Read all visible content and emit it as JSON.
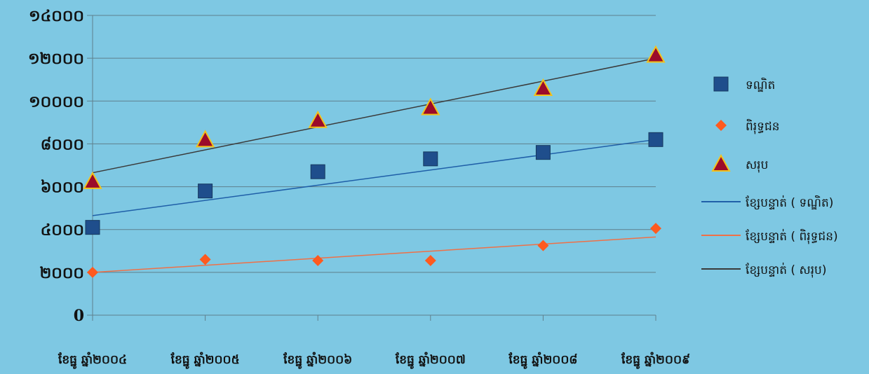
{
  "chart_data": {
    "type": "scatter",
    "title": "",
    "xlabel": "",
    "ylabel": "",
    "categories": [
      "ខែធ្នូ ឆ្នាំ២០០៤",
      "ខែធ្នូ ឆ្នាំ២០០៥",
      "ខែធ្នូ ឆ្នាំ២០០៦",
      "ខែធ្នូ ឆ្នាំ២០០៧",
      "ខែធ្នូ ឆ្នាំ២០០៨",
      "ខែធ្នូ ឆ្នាំ២០០៩"
    ],
    "ylim": [
      0,
      14000
    ],
    "yticks": [
      0,
      2000,
      4000,
      6000,
      8000,
      10000,
      12000,
      14000
    ],
    "ytick_labels": [
      "0",
      "២០០០",
      "៤០០០",
      "៦០០០",
      "៨០០០",
      "១០០០០",
      "១២០០០",
      "១៤០០០"
    ],
    "grid": true,
    "legend_position": "right",
    "series": [
      {
        "name": "ទណ្ឌិត",
        "marker": "square",
        "color": "#1f4e8c",
        "values": [
          4100,
          5800,
          6700,
          7300,
          7600,
          8200
        ]
      },
      {
        "name": "ពិរុទ្ធជន",
        "marker": "diamond",
        "color": "#ff5a1f",
        "values": [
          2000,
          2600,
          2550,
          2550,
          3250,
          4050
        ]
      },
      {
        "name": "សរុប",
        "marker": "triangle",
        "color": "#9b0b2a",
        "values": [
          6250,
          8200,
          9100,
          9700,
          10600,
          12150
        ]
      }
    ],
    "trendlines": [
      {
        "name": "ខ្សែបន្ទាត់ ( ទណ្ឌិត)",
        "color": "#1f5fa8",
        "start": 4650,
        "end": 8200
      },
      {
        "name": "ខ្សែបន្ទាត់ ( ពិរុទ្ធជន)",
        "color": "#ef7047",
        "start": 2000,
        "end": 3650
      },
      {
        "name": "ខ្សែបន្ទាត់ ( សរុប)",
        "color": "#3a3a3a",
        "start": 6650,
        "end": 12000
      }
    ]
  }
}
